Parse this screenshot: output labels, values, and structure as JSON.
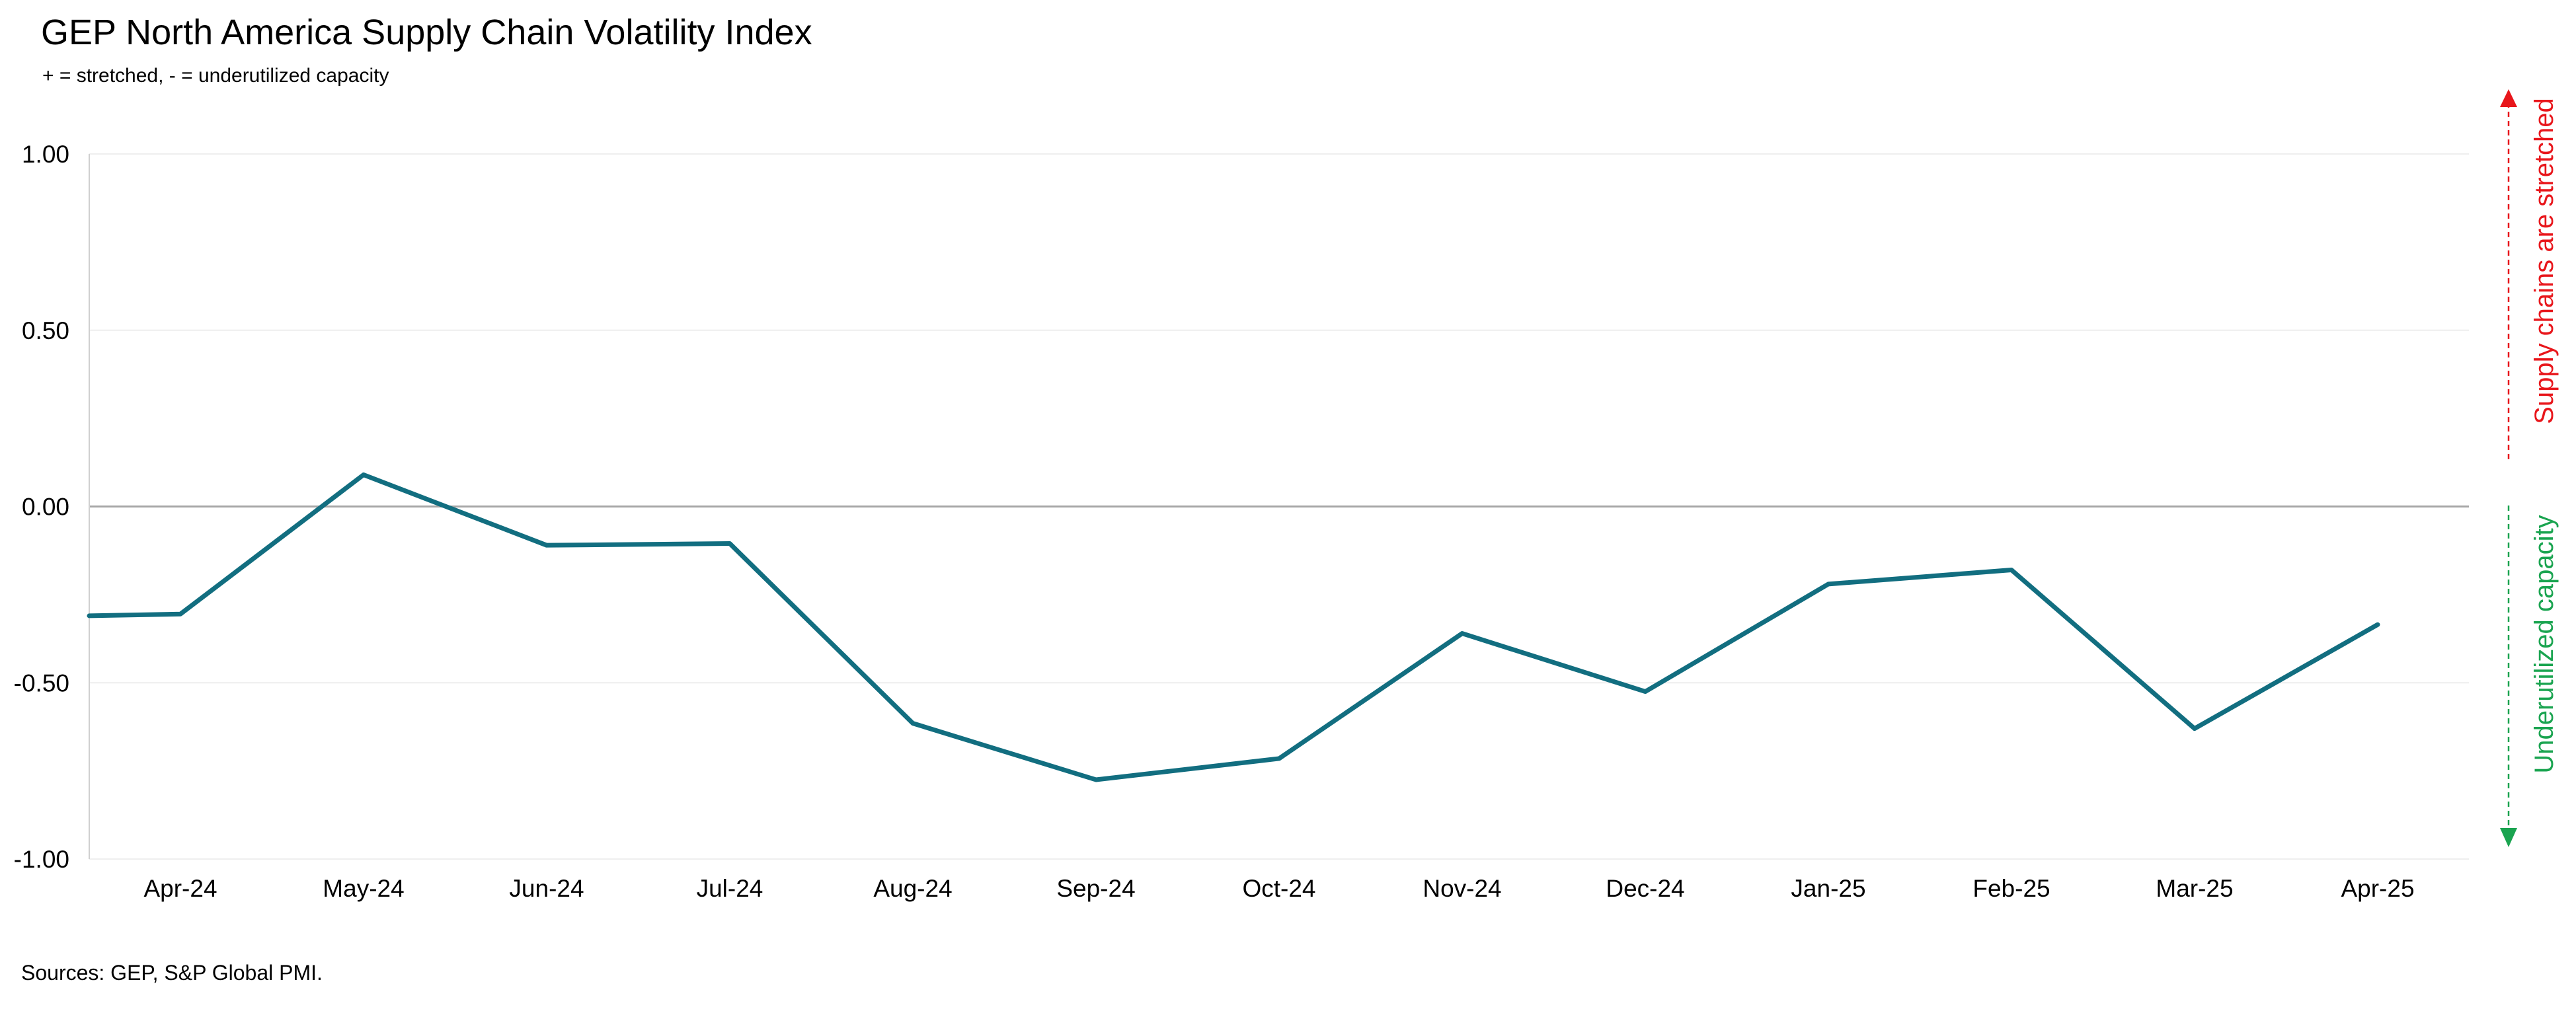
{
  "header": {
    "title": "GEP North America Supply Chain Volatility Index",
    "subtitle": "+ = stretched, - = underutilized capacity"
  },
  "footer": {
    "source": "Sources: GEP, S&P Global PMI."
  },
  "side_annotations": {
    "top_label": "Supply chains are stretched",
    "top_color": "#e8161b",
    "bottom_label": "Underutilized capacity",
    "bottom_color": "#1aa450"
  },
  "colors": {
    "line": "#126e80",
    "zero_line": "#a6a6a6",
    "grid": "#eeeeee",
    "axis": "#d0d0d0"
  },
  "chart_data": {
    "type": "line",
    "title": "GEP North America Supply Chain Volatility Index",
    "subtitle": "+ = stretched, - = underutilized capacity",
    "xlabel": "",
    "ylabel": "",
    "ylim": [
      -1.0,
      1.0
    ],
    "yticks": [
      "1.00",
      "0.50",
      "0.00",
      "-0.50",
      "-1.00"
    ],
    "grid": true,
    "categories": [
      "Apr-24",
      "May-24",
      "Jun-24",
      "Jul-24",
      "Aug-24",
      "Sep-24",
      "Oct-24",
      "Nov-24",
      "Dec-24",
      "Jan-25",
      "Feb-25",
      "Mar-25",
      "Apr-25"
    ],
    "start_value": -0.31,
    "series": [
      {
        "values": [
          -0.305,
          0.09,
          -0.11,
          -0.105,
          -0.615,
          -0.775,
          -0.715,
          -0.36,
          -0.525,
          -0.22,
          -0.18,
          -0.63,
          -0.335
        ]
      }
    ]
  }
}
